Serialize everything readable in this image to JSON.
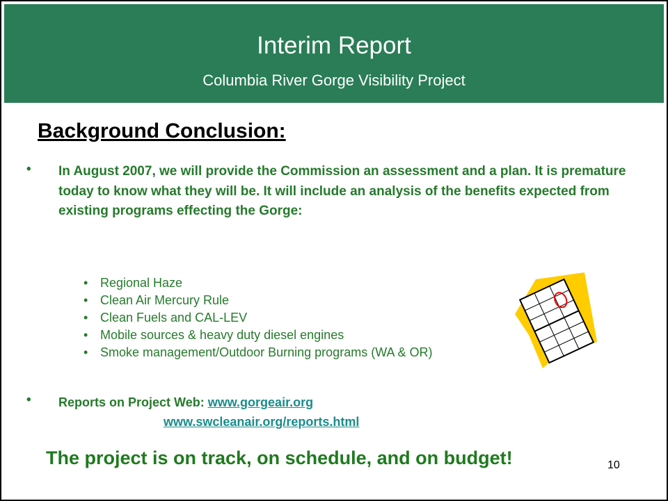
{
  "header": {
    "title": "Interim Report",
    "subtitle": "Columbia River Gorge Visibility Project"
  },
  "heading": "Background Conclusion:",
  "bullets": [
    {
      "text": "In August 2007, we will provide the Commission an assessment and a plan.  It is premature today to know what they will be.  It will include an analysis of the benefits expected from existing programs effecting the Gorge:",
      "sub_bullets": [
        "Regional Haze",
        "Clean Air Mercury Rule",
        "Clean Fuels and CAL-LEV",
        "Mobile sources & heavy duty diesel engines",
        "Smoke management/Outdoor Burning programs (WA & OR)"
      ]
    },
    {
      "text": "Reports on Project Web:",
      "links": [
        "www.gorgeair.org",
        "www.swcleanair.org/reports.html"
      ]
    }
  ],
  "closing": "The project is on track, on schedule, and on budget!",
  "slide_number": "10"
}
